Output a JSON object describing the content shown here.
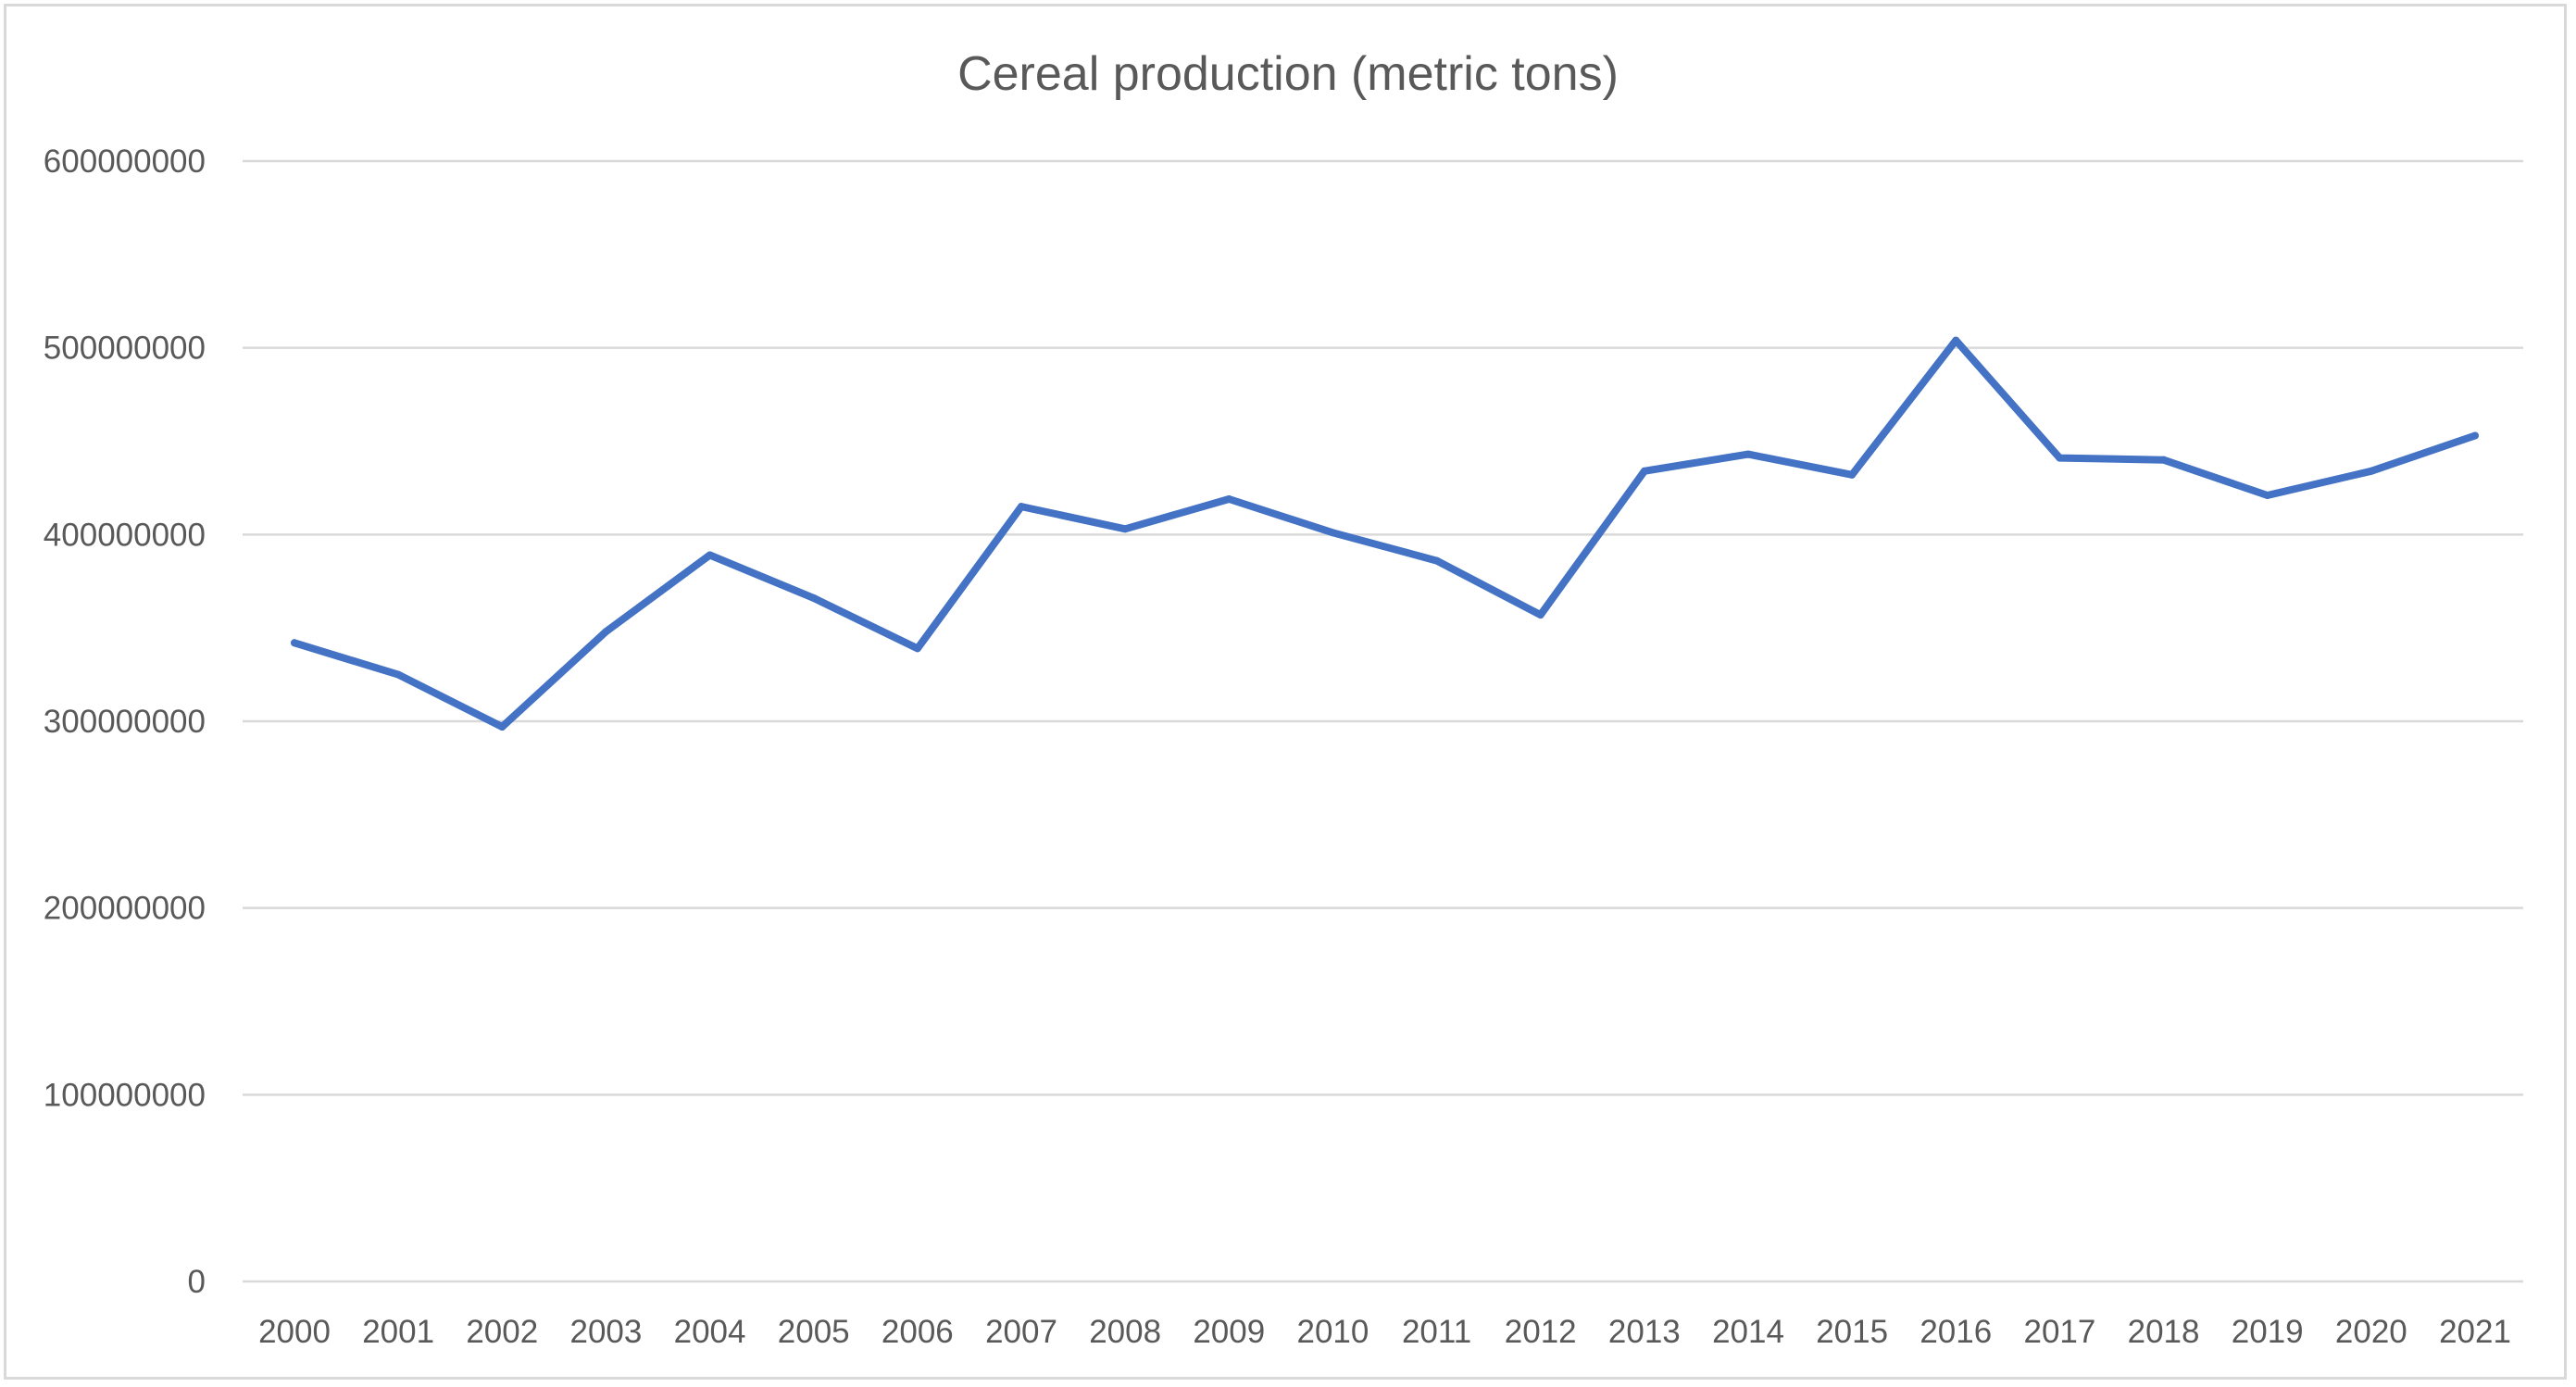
{
  "chart_data": {
    "type": "line",
    "title": "Cereal production (metric tons)",
    "xlabel": "",
    "ylabel": "",
    "categories": [
      "2000",
      "2001",
      "2002",
      "2003",
      "2004",
      "2005",
      "2006",
      "2007",
      "2008",
      "2009",
      "2010",
      "2011",
      "2012",
      "2013",
      "2014",
      "2015",
      "2016",
      "2017",
      "2018",
      "2019",
      "2020",
      "2021"
    ],
    "series": [
      {
        "values": [
          342000000,
          325000000,
          297000000,
          348000000,
          389000000,
          366000000,
          339000000,
          415000000,
          403000000,
          419000000,
          401000000,
          386000000,
          357000000,
          434000000,
          443000000,
          432000000,
          504000000,
          441000000,
          440000000,
          421000000,
          434000000,
          453000000
        ],
        "color": "#4472c4"
      }
    ],
    "ylim": [
      0,
      600000000
    ],
    "yticks": [
      "0",
      "100000000",
      "200000000",
      "300000000",
      "400000000",
      "500000000",
      "600000000"
    ],
    "grid": true,
    "legend": "none"
  }
}
